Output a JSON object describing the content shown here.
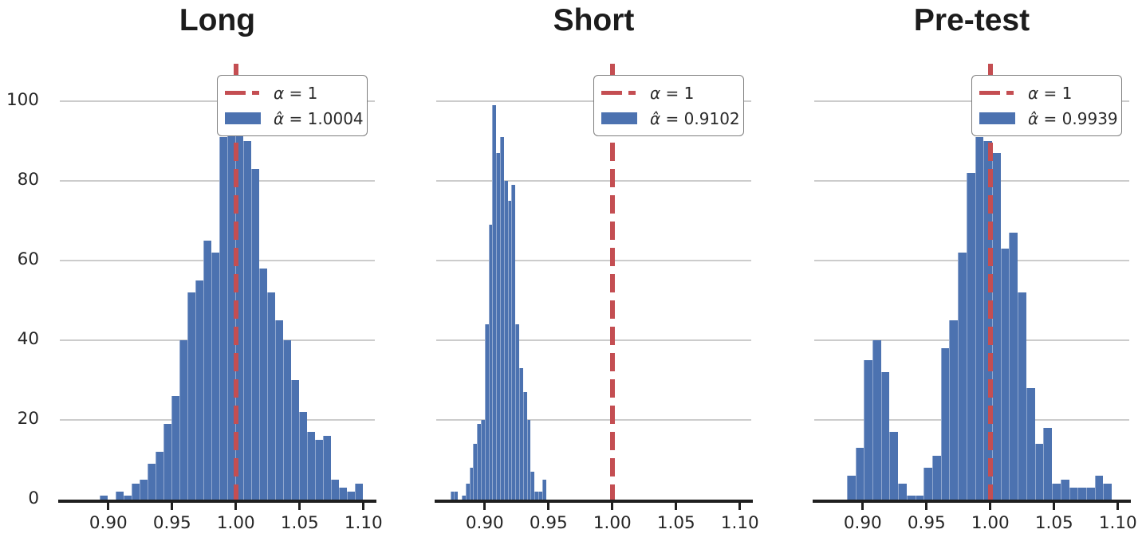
{
  "figure": {
    "background": "#ffffff",
    "colors": {
      "bar_fill": "#4c72b0",
      "bar_edge": "rgba(255,255,255,0.38)",
      "reference_line": "#c44e52",
      "gridline": "#cccccc",
      "spine": "#1f1f1f",
      "tick_text": "#262626",
      "title_text": "#1c1c1c",
      "legend_border": "#7e7e7e"
    }
  },
  "chart_data": [
    {
      "type": "bar",
      "subtype": "histogram",
      "title": "Long",
      "legend": [
        {
          "sample": "dashed-line",
          "label": "α = 1",
          "color": "#c44e52"
        },
        {
          "sample": "patch",
          "label": "α̂ = 1.0004",
          "color": "#4c72b0"
        }
      ],
      "vline_x": 1.0,
      "bin_start": 0.893,
      "bin_width": 0.00625,
      "heights": [
        1,
        0,
        2,
        1,
        4,
        5,
        9,
        12,
        19,
        26,
        40,
        52,
        55,
        65,
        62,
        91,
        95,
        92,
        90,
        83,
        58,
        52,
        45,
        40,
        30,
        22,
        17,
        15,
        16,
        5,
        3,
        2,
        4
      ],
      "x_tick_values": [
        0.9,
        0.95,
        1.0,
        1.05,
        1.1
      ],
      "x_tick_labels": [
        "0.90",
        "0.95",
        "1.00",
        "1.05",
        "1.10"
      ],
      "y_tick_values": [
        0,
        20,
        40,
        60,
        80,
        100
      ],
      "y_tick_labels": [
        "0",
        "20",
        "40",
        "60",
        "80",
        "100"
      ],
      "show_y_tick_labels": true,
      "xlim": [
        0.862,
        1.109
      ],
      "ylim": [
        0,
        109.4
      ],
      "gridline_values": [
        20,
        40,
        60,
        80,
        100
      ],
      "grid": "horizontal"
    },
    {
      "type": "bar",
      "subtype": "histogram",
      "title": "Short",
      "legend": [
        {
          "sample": "dashed-line",
          "label": "α = 1",
          "color": "#c44e52"
        },
        {
          "sample": "patch",
          "label": "α̂ = 0.9102",
          "color": "#4c72b0"
        }
      ],
      "vline_x": 1.0,
      "bin_start": 0.873,
      "bin_width": 0.003,
      "heights": [
        2,
        2,
        0,
        1,
        4,
        8,
        14,
        19,
        20,
        44,
        69,
        99,
        87,
        91,
        80,
        75,
        79,
        44,
        33,
        27,
        20,
        7,
        2,
        2,
        5
      ],
      "x_tick_values": [
        0.9,
        0.95,
        1.0,
        1.05,
        1.1
      ],
      "x_tick_labels": [
        "0.90",
        "0.95",
        "1.00",
        "1.05",
        "1.10"
      ],
      "y_tick_values": [
        0,
        20,
        40,
        60,
        80,
        100
      ],
      "y_tick_labels": [
        "0",
        "20",
        "40",
        "60",
        "80",
        "100"
      ],
      "show_y_tick_labels": false,
      "xlim": [
        0.862,
        1.109
      ],
      "ylim": [
        0,
        109.4
      ],
      "gridline_values": [
        20,
        40,
        60,
        80,
        100
      ],
      "grid": "horizontal"
    },
    {
      "type": "bar",
      "subtype": "histogram",
      "title": "Pre-test",
      "legend": [
        {
          "sample": "dashed-line",
          "label": "α = 1",
          "color": "#c44e52"
        },
        {
          "sample": "patch",
          "label": "α̂ = 0.9939",
          "color": "#4c72b0"
        }
      ],
      "vline_x": 1.0,
      "bin_start": 0.8875,
      "bin_width": 0.0067,
      "heights": [
        6,
        13,
        35,
        40,
        32,
        17,
        4,
        1,
        1,
        8,
        11,
        38,
        45,
        62,
        82,
        91,
        90,
        87,
        63,
        67,
        52,
        28,
        14,
        18,
        4,
        5,
        3,
        3,
        3,
        6,
        4
      ],
      "x_tick_values": [
        0.9,
        0.95,
        1.0,
        1.05,
        1.1
      ],
      "x_tick_labels": [
        "0.90",
        "0.95",
        "1.00",
        "1.05",
        "1.10"
      ],
      "y_tick_values": [
        0,
        20,
        40,
        60,
        80,
        100
      ],
      "y_tick_labels": [
        "0",
        "20",
        "40",
        "60",
        "80",
        "100"
      ],
      "show_y_tick_labels": false,
      "xlim": [
        0.862,
        1.109
      ],
      "ylim": [
        0,
        109.4
      ],
      "gridline_values": [
        20,
        40,
        60,
        80,
        100
      ],
      "grid": "horizontal"
    }
  ]
}
